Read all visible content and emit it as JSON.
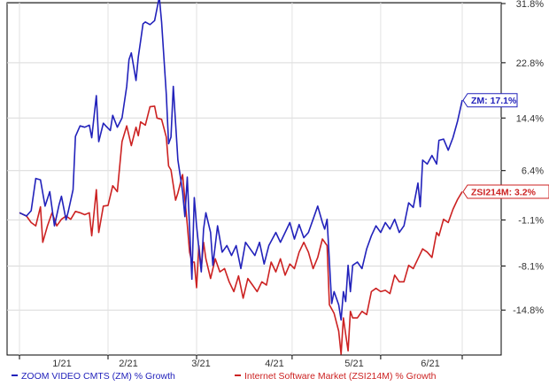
{
  "chart_data": {
    "type": "line",
    "y_axis": {
      "position": "right",
      "range": [
        -21.5,
        31.8
      ],
      "ticks": [
        31.8,
        22.8,
        14.4,
        6.4,
        -1.1,
        -8.1,
        -14.8
      ],
      "tick_labels": [
        "31.8%",
        "22.8%",
        "14.4%",
        "6.4%",
        "-1.1%",
        "-8.1%",
        "-14.8%"
      ]
    },
    "x_axis": {
      "tick_labels": [
        "1/21",
        "2/21",
        "3/21",
        "4/21",
        "5/21",
        "6/21"
      ]
    },
    "grid": true,
    "legend_placement": "bottom-left",
    "series": [
      {
        "name": "ZOOM VIDEO CMTS (ZM) % Growth",
        "color": "#2222bb",
        "end_tag": "ZM: 17.1%",
        "points": [
          [
            0,
            0
          ],
          [
            3,
            -0.5
          ],
          [
            5,
            0.3
          ],
          [
            7,
            5.2
          ],
          [
            9,
            5.0
          ],
          [
            11,
            1.0
          ],
          [
            13,
            3.2
          ],
          [
            15,
            -2.0
          ],
          [
            17,
            1.2
          ],
          [
            18,
            2.5
          ],
          [
            20,
            -1.1
          ],
          [
            21,
            0.3
          ],
          [
            23,
            3.5
          ],
          [
            24,
            11.6
          ],
          [
            26,
            13.2
          ],
          [
            28,
            13.0
          ],
          [
            30,
            13.3
          ],
          [
            31,
            11.4
          ],
          [
            33,
            17.8
          ],
          [
            34,
            10.8
          ],
          [
            36,
            13.6
          ],
          [
            37,
            13.2
          ],
          [
            39,
            12.5
          ],
          [
            40,
            14.8
          ],
          [
            42,
            13.0
          ],
          [
            44,
            14.4
          ],
          [
            46,
            19.2
          ],
          [
            47,
            23.3
          ],
          [
            48,
            24.3
          ],
          [
            50,
            20.1
          ],
          [
            51,
            23.7
          ],
          [
            52,
            26.1
          ],
          [
            53,
            28.7
          ],
          [
            54,
            29.0
          ],
          [
            56,
            28.6
          ],
          [
            58,
            29.2
          ],
          [
            60,
            32.8
          ],
          [
            61,
            29.0
          ],
          [
            63,
            18.0
          ],
          [
            64,
            10.5
          ],
          [
            65,
            11.5
          ],
          [
            66,
            19.2
          ],
          [
            68,
            8.0
          ],
          [
            70,
            3.2
          ],
          [
            71,
            -0.6
          ],
          [
            72,
            5.4
          ],
          [
            74,
            -10.1
          ],
          [
            75,
            2.3
          ],
          [
            76,
            -2.0
          ],
          [
            78,
            -9.0
          ],
          [
            79,
            -2.5
          ],
          [
            80,
            0.0
          ],
          [
            82,
            -3.0
          ],
          [
            83,
            -8.0
          ],
          [
            85,
            -2.0
          ],
          [
            87,
            -6.0
          ],
          [
            89,
            -5.0
          ],
          [
            91,
            -6.5
          ],
          [
            93,
            -5.0
          ],
          [
            95,
            -8.5
          ],
          [
            97,
            -4.5
          ],
          [
            99,
            -5.5
          ],
          [
            101,
            -6.5
          ],
          [
            103,
            -4.5
          ],
          [
            105,
            -7.8
          ],
          [
            107,
            -5.0
          ],
          [
            110,
            -3.0
          ],
          [
            112,
            -4.5
          ],
          [
            114,
            -3.0
          ],
          [
            116,
            -1.5
          ],
          [
            118,
            -4.0
          ],
          [
            120,
            -1.8
          ],
          [
            122,
            -3.8
          ],
          [
            124,
            -3.0
          ],
          [
            126,
            -1.0
          ],
          [
            128,
            1.0
          ],
          [
            130,
            -1.5
          ],
          [
            131,
            -2.5
          ],
          [
            132,
            -1.0
          ],
          [
            134,
            -13.8
          ],
          [
            135,
            -12.0
          ],
          [
            136,
            -13.0
          ],
          [
            137,
            -14.0
          ],
          [
            138,
            -16.3
          ],
          [
            139,
            -12.0
          ],
          [
            140,
            -13.5
          ],
          [
            141,
            -8.0
          ],
          [
            142,
            -12.0
          ],
          [
            143,
            -8.0
          ],
          [
            145,
            -7.5
          ],
          [
            147,
            -8.5
          ],
          [
            149,
            -5.5
          ],
          [
            151,
            -3.5
          ],
          [
            153,
            -2.0
          ],
          [
            155,
            -3.0
          ],
          [
            157,
            -1.5
          ],
          [
            159,
            -2.5
          ],
          [
            161,
            -1.0
          ],
          [
            163,
            -3.0
          ],
          [
            165,
            -2.0
          ],
          [
            167,
            1.5
          ],
          [
            169,
            0.8
          ],
          [
            171,
            4.5
          ],
          [
            172,
            0.9
          ],
          [
            173,
            8.0
          ],
          [
            175,
            7.4
          ],
          [
            177,
            8.7
          ],
          [
            179,
            7.4
          ],
          [
            180,
            11.0
          ],
          [
            182,
            11.2
          ],
          [
            184,
            9.5
          ],
          [
            186,
            11.4
          ],
          [
            188,
            13.9
          ],
          [
            190,
            17.1
          ]
        ]
      },
      {
        "name": "Internet Software Market (ZSI214M) % Growth",
        "color": "#cc2222",
        "end_tag": "ZSI214M: 3.2%",
        "points": [
          [
            0,
            0
          ],
          [
            3,
            -0.5
          ],
          [
            5,
            -1.5
          ],
          [
            7,
            -2.0
          ],
          [
            9,
            0.9
          ],
          [
            10,
            -4.5
          ],
          [
            12,
            -2.0
          ],
          [
            14,
            0.0
          ],
          [
            16,
            -2.0
          ],
          [
            18,
            -1.0
          ],
          [
            20,
            -0.5
          ],
          [
            22,
            -1.0
          ],
          [
            24,
            0.2
          ],
          [
            26,
            0.0
          ],
          [
            28,
            -0.3
          ],
          [
            30,
            0.0
          ],
          [
            31,
            -3.5
          ],
          [
            33,
            3.5
          ],
          [
            34,
            -3.0
          ],
          [
            36,
            1.0
          ],
          [
            38,
            1.1
          ],
          [
            40,
            4.1
          ],
          [
            42,
            3.2
          ],
          [
            44,
            10.8
          ],
          [
            46,
            13.2
          ],
          [
            48,
            10.2
          ],
          [
            50,
            13.0
          ],
          [
            51,
            11.7
          ],
          [
            52,
            13.8
          ],
          [
            54,
            13.3
          ],
          [
            56,
            16.1
          ],
          [
            58,
            16.2
          ],
          [
            59,
            14.4
          ],
          [
            61,
            14.2
          ],
          [
            63,
            11.5
          ],
          [
            64,
            7.1
          ],
          [
            65,
            6.5
          ],
          [
            67,
            1.9
          ],
          [
            68,
            3.0
          ],
          [
            70,
            5.8
          ],
          [
            72,
            -1.8
          ],
          [
            73,
            -6.0
          ],
          [
            74,
            -7.5
          ],
          [
            75,
            -7.5
          ],
          [
            76,
            -11.4
          ],
          [
            77,
            -5.0
          ],
          [
            78,
            -8.5
          ],
          [
            79,
            -4.5
          ],
          [
            80,
            -7.0
          ],
          [
            82,
            -10.0
          ],
          [
            84,
            -7.0
          ],
          [
            86,
            -9.0
          ],
          [
            88,
            -8.5
          ],
          [
            90,
            -10.5
          ],
          [
            92,
            -12.0
          ],
          [
            94,
            -9.6
          ],
          [
            96,
            -13.0
          ],
          [
            98,
            -10.0
          ],
          [
            100,
            -11.0
          ],
          [
            102,
            -12.0
          ],
          [
            104,
            -10.5
          ],
          [
            106,
            -11.0
          ],
          [
            108,
            -7.5
          ],
          [
            110,
            -9.0
          ],
          [
            112,
            -7.0
          ],
          [
            114,
            -9.5
          ],
          [
            116,
            -7.8
          ],
          [
            118,
            -8.5
          ],
          [
            120,
            -6.0
          ],
          [
            122,
            -4.5
          ],
          [
            124,
            -6.0
          ],
          [
            126,
            -8.5
          ],
          [
            128,
            -6.8
          ],
          [
            130,
            -4.0
          ],
          [
            132,
            -5.0
          ],
          [
            133,
            -14.0
          ],
          [
            135,
            -15.3
          ],
          [
            137,
            -18.0
          ],
          [
            138,
            -21.5
          ],
          [
            139,
            -16.0
          ],
          [
            140,
            -18.5
          ],
          [
            141,
            -21.0
          ],
          [
            142,
            -15.0
          ],
          [
            143,
            -16.0
          ],
          [
            145,
            -16.0
          ],
          [
            147,
            -15.0
          ],
          [
            149,
            -15.5
          ],
          [
            151,
            -12.0
          ],
          [
            153,
            -11.5
          ],
          [
            155,
            -12.0
          ],
          [
            157,
            -11.8
          ],
          [
            159,
            -12.3
          ],
          [
            161,
            -9.5
          ],
          [
            163,
            -10.5
          ],
          [
            165,
            -10.5
          ],
          [
            167,
            -8.0
          ],
          [
            169,
            -8.5
          ],
          [
            171,
            -7.0
          ],
          [
            173,
            -5.5
          ],
          [
            175,
            -6.0
          ],
          [
            177,
            -6.8
          ],
          [
            179,
            -3.0
          ],
          [
            180,
            -3.5
          ],
          [
            182,
            -1.0
          ],
          [
            184,
            -1.5
          ],
          [
            186,
            0.5
          ],
          [
            188,
            2.0
          ],
          [
            190,
            3.2
          ]
        ]
      }
    ]
  }
}
